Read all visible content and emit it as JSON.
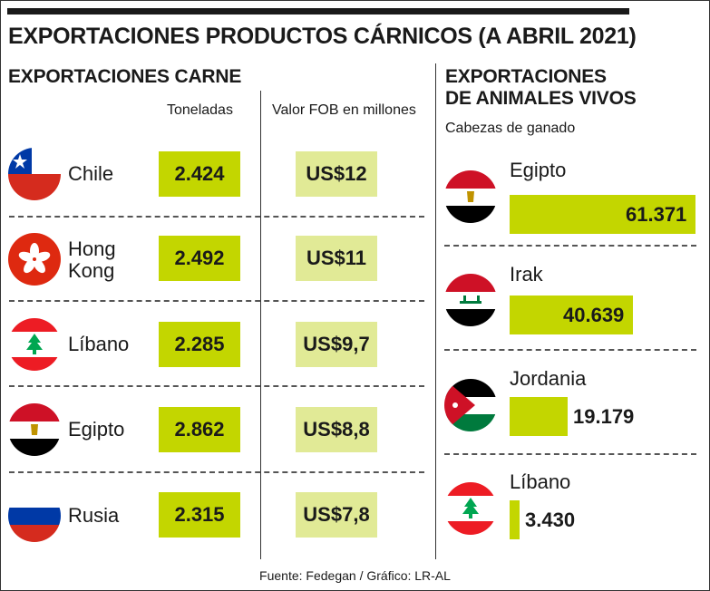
{
  "title": "EXPORTACIONES PRODUCTOS CÁRNICOS (A ABRIL 2021)",
  "left": {
    "title": "EXPORTACIONES CARNE",
    "col_toneladas": "Toneladas",
    "col_valor": "Valor FOB en millones",
    "rows": [
      {
        "country": "Chile",
        "flag": "chile-flag",
        "toneladas": "2.424",
        "valor": "US$12"
      },
      {
        "country": "Hong Kong",
        "flag": "hong-kong-flag",
        "toneladas": "2.492",
        "valor": "US$11"
      },
      {
        "country": "Líbano",
        "flag": "lebanon-flag",
        "toneladas": "2.285",
        "valor": "US$9,7"
      },
      {
        "country": "Egipto",
        "flag": "egypt-flag",
        "toneladas": "2.862",
        "valor": "US$8,8"
      },
      {
        "country": "Rusia",
        "flag": "russia-flag",
        "toneladas": "2.315",
        "valor": "US$7,8"
      }
    ]
  },
  "right": {
    "title_line1": "EXPORTACIONES",
    "title_line2": "DE ANIMALES VIVOS",
    "subtitle": "Cabezas de ganado",
    "rows": [
      {
        "country": "Egipto",
        "flag": "egypt-flag",
        "value": "61.371"
      },
      {
        "country": "Irak",
        "flag": "iraq-flag",
        "value": "40.639"
      },
      {
        "country": "Jordania",
        "flag": "jordan-flag",
        "value": "19.179"
      },
      {
        "country": "Líbano",
        "flag": "lebanon-flag",
        "value": "3.430"
      }
    ]
  },
  "source": "Fuente: Fedegan / Gráfico: LR-AL",
  "colors": {
    "bar": "#c3d600",
    "value_box": "#e1ea96"
  },
  "chart_data": [
    {
      "type": "table",
      "title": "EXPORTACIONES CARNE",
      "columns": [
        "",
        "Toneladas",
        "Valor FOB en millones"
      ],
      "rows": [
        [
          "Chile",
          2424,
          "US$12"
        ],
        [
          "Hong Kong",
          2492,
          "US$11"
        ],
        [
          "Líbano",
          2285,
          "US$9,7"
        ],
        [
          "Egipto",
          2862,
          "US$8,8"
        ],
        [
          "Rusia",
          2315,
          "US$7,8"
        ]
      ]
    },
    {
      "type": "bar",
      "orientation": "horizontal",
      "title": "EXPORTACIONES DE ANIMALES VIVOS",
      "subtitle": "Cabezas de ganado",
      "categories": [
        "Egipto",
        "Irak",
        "Jordania",
        "Líbano"
      ],
      "values": [
        61371,
        40639,
        19179,
        3430
      ],
      "xlim": [
        0,
        61371
      ]
    }
  ]
}
